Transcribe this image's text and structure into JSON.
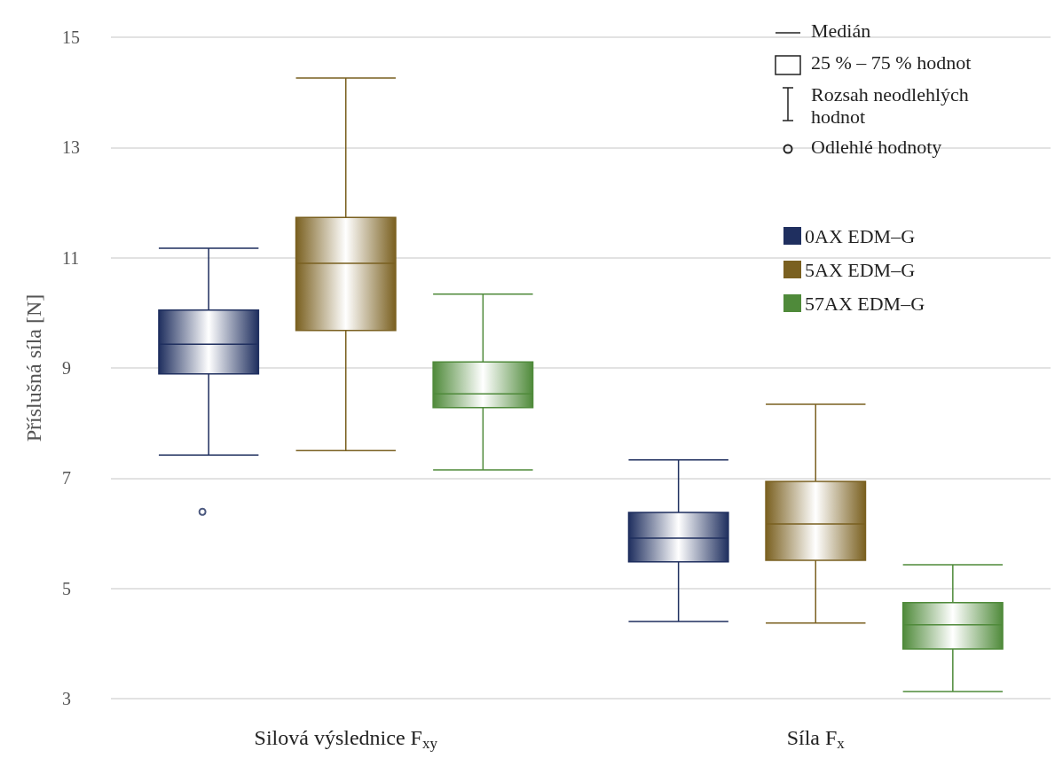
{
  "chart_data": {
    "type": "box",
    "ylabel": "Příslušná síla [N]",
    "categories": [
      "Silová výslednice F$_{xy}$",
      "Síla F$_{x}$"
    ],
    "ylim": [
      3,
      15
    ],
    "yticks": [
      3,
      5,
      7,
      9,
      11,
      13,
      15
    ],
    "grid": "y",
    "legend": "top right",
    "annotations": [
      "Medián",
      "25 % – 75 % hodnot",
      "Rozsah neodlehlých hodnot",
      "Odlehlé hodnoty"
    ],
    "series": [
      {
        "name": "0AX EDM–G",
        "color": "#1f2f5f",
        "boxes": [
          {
            "low": 7.42,
            "q1": 8.89,
            "median": 9.43,
            "q3": 10.05,
            "high": 11.17,
            "outliers": [
              6.39
            ]
          },
          {
            "low": 4.4,
            "q1": 5.48,
            "median": 5.91,
            "q3": 6.38,
            "high": 7.33
          }
        ]
      },
      {
        "name": "5AX EDM–G",
        "color": "#7a6020",
        "boxes": [
          {
            "low": 7.5,
            "q1": 9.68,
            "median": 10.9,
            "q3": 11.73,
            "high": 14.26
          },
          {
            "low": 4.37,
            "q1": 5.51,
            "median": 6.17,
            "q3": 6.94,
            "high": 8.34
          }
        ]
      },
      {
        "name": "57AX EDM–G",
        "color": "#4f8a3a",
        "boxes": [
          {
            "low": 7.15,
            "q1": 8.28,
            "median": 8.53,
            "q3": 9.11,
            "high": 10.34
          },
          {
            "low": 3.13,
            "q1": 3.9,
            "median": 4.34,
            "q3": 4.74,
            "high": 5.43
          }
        ]
      }
    ]
  }
}
